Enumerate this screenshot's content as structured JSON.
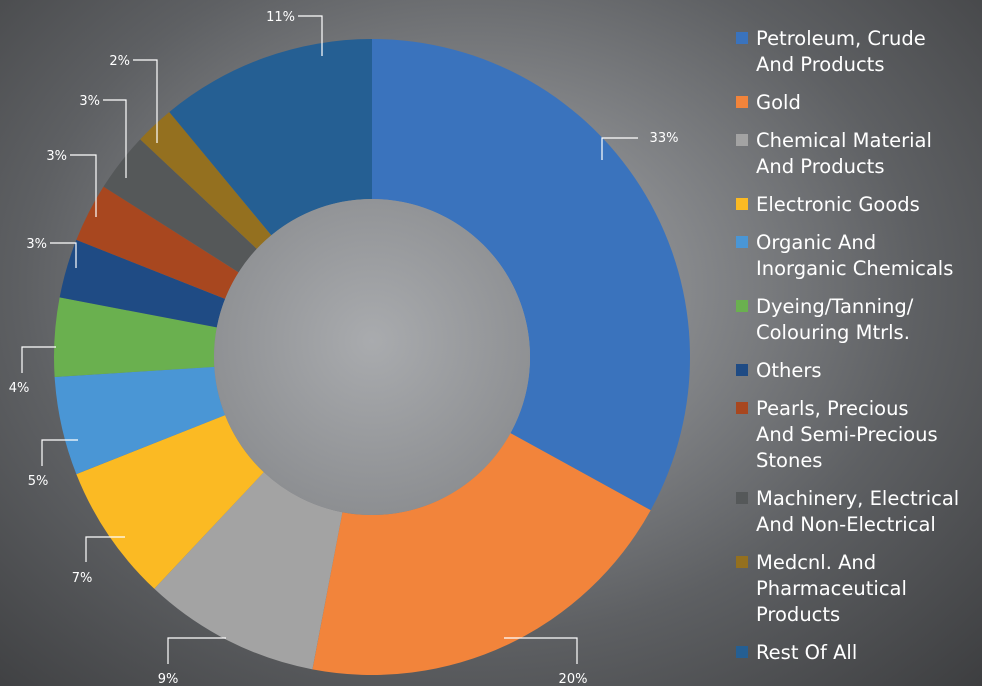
{
  "chart_data": {
    "type": "pie",
    "title": "",
    "donut": true,
    "slices": [
      {
        "name": "Petroleum, Crude\nAnd Products",
        "value": 33,
        "label": "33%",
        "color": "#3a73bd"
      },
      {
        "name": "Gold",
        "value": 20,
        "label": "20%",
        "color": "#f2843b"
      },
      {
        "name": "Chemical Material\nAnd Products",
        "value": 9,
        "label": "9%",
        "color": "#a3a3a3"
      },
      {
        "name": "Electronic Goods",
        "value": 7,
        "label": "7%",
        "color": "#fbba23"
      },
      {
        "name": "Organic And\nInorganic Chemicals",
        "value": 5,
        "label": "5%",
        "color": "#4a96d5"
      },
      {
        "name": "Dyeing/Tanning/\nColouring Mtrls.",
        "value": 4,
        "label": "4%",
        "color": "#6ab04f"
      },
      {
        "name": "Others",
        "value": 3,
        "label": "3%",
        "color": "#1f4b84"
      },
      {
        "name": "Pearls, Precious\nAnd Semi-Precious\nStones",
        "value": 3,
        "label": "3%",
        "color": "#a8471f"
      },
      {
        "name": "Machinery, Electrical\nAnd Non-Electrical",
        "value": 3,
        "label": "3%",
        "color": "#555859"
      },
      {
        "name": "Medcnl. And\nPharmaceutical\nProducts",
        "value": 2,
        "label": "2%",
        "color": "#94701f"
      },
      {
        "name": "Rest Of All",
        "value": 11,
        "label": "11%",
        "color": "#255f93"
      }
    ],
    "legend_position": "right"
  }
}
